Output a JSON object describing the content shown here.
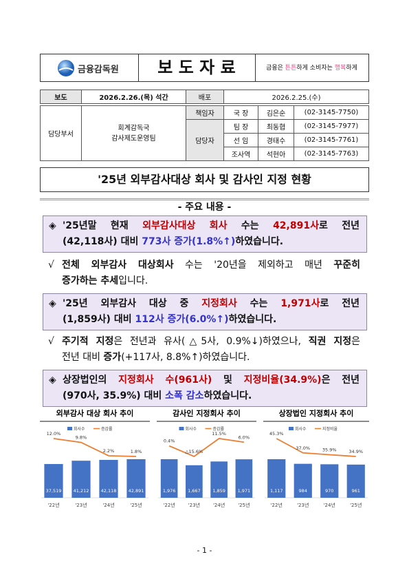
{
  "header": {
    "logo": "금융감독원",
    "title": "보 도 자 료",
    "slogan": [
      {
        "text": "금융은 "
      },
      {
        "text": "튼튼",
        "color": "#e0568a"
      },
      {
        "text": "하게 소비자는 "
      },
      {
        "text": "행복",
        "color": "#e0568a"
      },
      {
        "text": "하게"
      }
    ]
  },
  "release": {
    "label": "보도",
    "date": "2026.2.26.(목) 석간",
    "dist_label": "배포",
    "dist_date": "2026.2.25.(수)"
  },
  "contacts": {
    "dept_label": "담당부서",
    "dept": [
      "회계감독국",
      "감사제도운영팀"
    ],
    "rows": [
      {
        "role": "책임자",
        "title": "국 장",
        "name": "김은순",
        "phone": "(02-3145-7750)"
      },
      {
        "role": "담당자",
        "title": "팀 장",
        "name": "최동협",
        "phone": "(02-3145-7977)"
      },
      {
        "title": "선 임",
        "name": "경태수",
        "phone": "(02-3145-7761)"
      },
      {
        "title": "조사역",
        "name": "석현아",
        "phone": "(02-3145-7763)"
      }
    ]
  },
  "doc_title": "'25년 외부감사대상 회사 및 감사인 지정 현황",
  "section": "- 주요 내용 -",
  "bullets": [
    {
      "marker": "◈",
      "lines": [
        [
          {
            "text": "'25년말 현재 "
          },
          {
            "text": "외부감사대상 회사",
            "color": "#c00000"
          },
          {
            "text": " 수는 "
          },
          {
            "text": "42,891사",
            "color": "#c00000"
          },
          {
            "text": "로 전년"
          }
        ],
        [
          {
            "text": "(42,118사) 대비 "
          },
          {
            "text": "773사 증가(1.8%↑)",
            "color": "#3333cc"
          },
          {
            "text": "하였습니다."
          }
        ]
      ]
    },
    {
      "marker": "√",
      "sub": true,
      "lines": [
        [
          {
            "text": "전체 외부감사 대상회사",
            "bold": true
          },
          {
            "text": " 수는 '20년을 제외하고 매년 "
          },
          {
            "text": "꾸준히",
            "bold": true
          }
        ],
        [
          {
            "text": "증가하는 추세",
            "bold": true
          },
          {
            "text": "입니다."
          }
        ]
      ]
    },
    {
      "marker": "◈",
      "lines": [
        [
          {
            "text": "'25년 외부감사 대상 중 "
          },
          {
            "text": "지정회사",
            "color": "#c00000"
          },
          {
            "text": " 수는 "
          },
          {
            "text": "1,971사",
            "color": "#c00000"
          },
          {
            "text": "로 전년"
          }
        ],
        [
          {
            "text": "(1,859사) 대비 "
          },
          {
            "text": "112사 증가(6.0%↑)",
            "color": "#3333cc"
          },
          {
            "text": "하였습니다."
          }
        ]
      ]
    },
    {
      "marker": "√",
      "sub": true,
      "lines": [
        [
          {
            "text": "주기적 지정",
            "bold": true
          },
          {
            "text": "은 전년과 유사(△5사, 0.9%↓)하였으나, "
          },
          {
            "text": "직권 지정",
            "bold": true
          },
          {
            "text": "은"
          }
        ],
        [
          {
            "text": "전년 대비 "
          },
          {
            "text": "증가",
            "bold": true
          },
          {
            "text": "(+117사, 8.8%↑)하였습니다."
          }
        ]
      ]
    },
    {
      "marker": "◈",
      "lines": [
        [
          {
            "text": "상장법인의 "
          },
          {
            "text": "지정회사 수(961사)",
            "color": "#c00000"
          },
          {
            "text": " 및 "
          },
          {
            "text": "지정비율(34.9%)",
            "color": "#c00000"
          },
          {
            "text": "은 전년"
          }
        ],
        [
          {
            "text": "(970사, 35.9%) 대비 "
          },
          {
            "text": "소폭 감소",
            "color": "#3333cc"
          },
          {
            "text": "하였습니다."
          }
        ]
      ]
    }
  ],
  "chart_data": [
    {
      "type": "bar",
      "title": "외부감사 대상 회사 추이",
      "categories": [
        "'22년",
        "'23년",
        "'24년",
        "'25년"
      ],
      "series": [
        {
          "name": "회사수",
          "type": "bar",
          "color": "#4472c4",
          "values": [
            37519,
            41212,
            42118,
            42891
          ],
          "value_labels": [
            "37,519",
            "41,212",
            "42,118",
            "42,891"
          ]
        },
        {
          "name": "증감률",
          "type": "line",
          "color": "#ed7d31",
          "values": [
            12.0,
            9.8,
            2.2,
            1.8
          ],
          "value_labels": [
            "12.0%",
            "9.8%",
            "2.2%",
            "1.8%"
          ]
        }
      ]
    },
    {
      "type": "bar",
      "title": "감사인 지정회사 추이",
      "categories": [
        "'22년",
        "'23년",
        "'24년",
        "'25년"
      ],
      "series": [
        {
          "name": "회사수",
          "type": "bar",
          "color": "#4472c4",
          "values": [
            1976,
            1667,
            1859,
            1971
          ],
          "value_labels": [
            "1,976",
            "1,667",
            "1,859",
            "1,971"
          ]
        },
        {
          "name": "증감률",
          "type": "line",
          "color": "#ed7d31",
          "values": [
            0.4,
            -15.6,
            11.5,
            6.0
          ],
          "value_labels": [
            "0.4%",
            "△15.6%",
            "11.5%",
            "6.0%"
          ]
        }
      ]
    },
    {
      "type": "bar",
      "title": "상장법인 지정회사 추이",
      "categories": [
        "'22년",
        "'23년",
        "'24년",
        "'25년"
      ],
      "series": [
        {
          "name": "회사수",
          "type": "bar",
          "color": "#4472c4",
          "values": [
            1117,
            984,
            970,
            961
          ],
          "value_labels": [
            "1,117",
            "984",
            "970",
            "961"
          ]
        },
        {
          "name": "지정비율",
          "type": "line",
          "color": "#ed7d31",
          "values": [
            45.3,
            37.0,
            35.9,
            34.9
          ],
          "value_labels": [
            "45.3%",
            "37.0%",
            "35.9%",
            "34.9%"
          ]
        }
      ]
    }
  ],
  "footer": {
    "page": "- 1 -"
  }
}
